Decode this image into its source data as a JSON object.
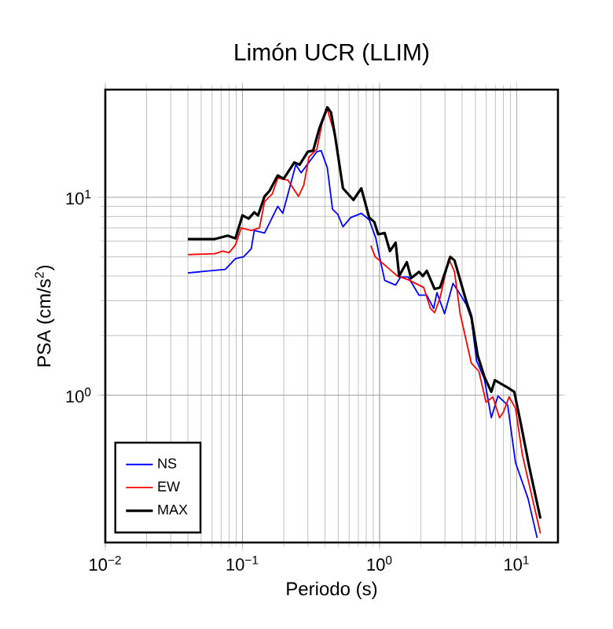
{
  "chart_data": {
    "type": "line",
    "title": "Limón UCR (LLIM)",
    "xlabel": "Periodo (s)",
    "ylabel": "PSA (cm/s$^{2}$)",
    "log": "xy",
    "grid": true,
    "legend": "bottom left",
    "marker": "none",
    "line_style": "solid",
    "xlim": [
      0.01,
      20
    ],
    "ylim": [
      0.18,
      35
    ],
    "xticks": [
      {
        "value": 0.01,
        "label": "10$^{−2}$"
      },
      {
        "value": 0.1,
        "label": "10$^{−1}$"
      },
      {
        "value": 1,
        "label": "10$^{0}$"
      },
      {
        "value": 10,
        "label": "10$^{1}$"
      }
    ],
    "yticks": [
      {
        "value": 1,
        "label": "10$^{0}$"
      },
      {
        "value": 10,
        "label": "10$^{1}$"
      }
    ],
    "series": [
      {
        "name": "NS",
        "color": "#0000ff",
        "x": [
          0.04,
          0.075,
          0.089,
          0.102,
          0.116,
          0.122,
          0.145,
          0.181,
          0.197,
          0.245,
          0.268,
          0.349,
          0.375,
          0.416,
          0.454,
          0.496,
          0.541,
          0.617,
          0.736,
          0.84,
          0.94,
          1.0,
          1.09,
          1.31,
          1.42,
          1.62,
          1.94,
          2.21,
          2.48,
          2.62,
          2.98,
          3.43,
          3.8,
          4.28,
          4.67,
          5.1,
          5.81,
          6.53,
          7.3,
          8.6,
          9.8,
          12.1,
          14.1
        ],
        "values": [
          4.15,
          4.32,
          4.9,
          5.0,
          5.5,
          6.8,
          6.6,
          9.0,
          8.3,
          14.6,
          13.3,
          17.0,
          17.2,
          14.1,
          8.7,
          8.2,
          7.1,
          7.9,
          8.3,
          7.7,
          6.2,
          5.0,
          3.8,
          3.6,
          3.95,
          3.95,
          3.2,
          3.2,
          2.74,
          3.3,
          2.58,
          3.67,
          3.3,
          2.88,
          2.43,
          1.49,
          1.21,
          0.77,
          0.99,
          0.89,
          0.457,
          0.3,
          0.19
        ]
      },
      {
        "name": "EW",
        "color": "#ff0000",
        "x": [
          0.04,
          0.063,
          0.072,
          0.08,
          0.089,
          0.098,
          0.116,
          0.133,
          0.145,
          0.165,
          0.181,
          0.215,
          0.256,
          0.28,
          0.306,
          0.349,
          0.381,
          0.416,
          0.474,
          0.541,
          0.645,
          0.736,
          0.863,
          0.93,
          1.35,
          1.62,
          2.1,
          2.35,
          2.52,
          2.76,
          3.2,
          3.52,
          3.87,
          4.67,
          5.3,
          5.98,
          6.7,
          7.5,
          8.0,
          8.8,
          9.8,
          11.0,
          14.9
        ],
        "values": [
          5.13,
          5.19,
          5.35,
          5.25,
          5.75,
          7.0,
          6.8,
          7.0,
          9.5,
          10.4,
          12.5,
          12.2,
          10.1,
          11.5,
          16.0,
          17.5,
          23.7,
          27.9,
          20.4,
          null,
          null,
          null,
          5.7,
          5.0,
          4.0,
          3.83,
          3.5,
          2.74,
          2.61,
          3.1,
          4.9,
          4.2,
          2.58,
          1.45,
          1.32,
          0.92,
          0.98,
          0.77,
          0.82,
          0.98,
          0.86,
          0.5,
          0.2
        ]
      },
      {
        "name": "MAX",
        "color": "#000000",
        "x": [
          0.04,
          0.063,
          0.078,
          0.089,
          0.1,
          0.111,
          0.122,
          0.13,
          0.145,
          0.158,
          0.181,
          0.2,
          0.239,
          0.261,
          0.3,
          0.328,
          0.364,
          0.416,
          0.443,
          0.474,
          0.541,
          0.645,
          0.736,
          0.84,
          0.916,
          0.977,
          1.09,
          1.19,
          1.31,
          1.39,
          1.58,
          1.7,
          1.94,
          2.07,
          2.21,
          2.52,
          2.76,
          3.28,
          3.52,
          4.28,
          4.67,
          5.19,
          5.81,
          6.53,
          6.94,
          8.63,
          9.6,
          10.8,
          12.3,
          14.9
        ],
        "values": [
          6.15,
          6.15,
          6.4,
          6.2,
          8.1,
          7.8,
          8.4,
          8.1,
          10.1,
          10.8,
          12.9,
          12.4,
          15.0,
          14.6,
          17.0,
          17.2,
          22.3,
          28.5,
          26.8,
          20.4,
          11.1,
          9.7,
          11.1,
          7.9,
          7.5,
          6.5,
          6.6,
          5.35,
          5.9,
          4.0,
          4.7,
          3.9,
          4.2,
          4.0,
          4.25,
          3.44,
          3.5,
          5.0,
          4.8,
          3.0,
          2.5,
          1.59,
          1.24,
          1.04,
          1.19,
          1.09,
          1.04,
          0.7,
          0.44,
          0.238
        ]
      }
    ]
  }
}
